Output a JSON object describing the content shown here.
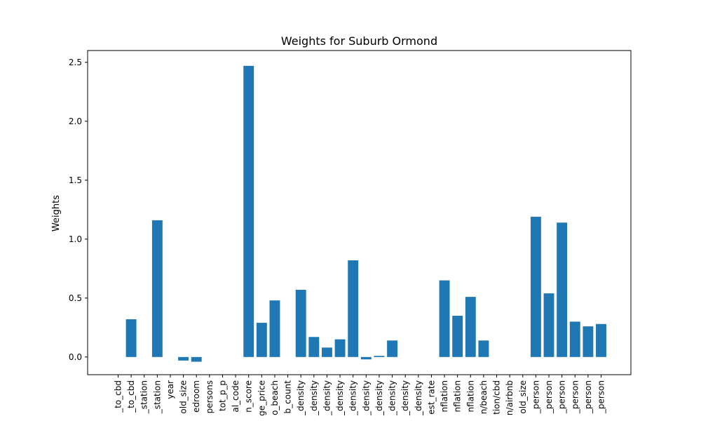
{
  "chart_data": {
    "type": "bar",
    "title": "Weights for Suburb Ormond",
    "xlabel": "",
    "ylabel": "Weights",
    "ylim": [
      -0.15,
      2.6
    ],
    "yticks": [
      0.0,
      0.5,
      1.0,
      1.5,
      2.0,
      2.5
    ],
    "ytick_labels": [
      "0.0",
      "0.5",
      "1.0",
      "1.5",
      "2.0",
      "2.5"
    ],
    "grid": false,
    "bar_color": "#1f77b4",
    "categories": [
      "_to_cbd",
      "_to_cbd",
      "_station",
      "_station",
      "year",
      "old_size",
      "edroom",
      "persons",
      "tot_p_p",
      "al_code",
      "n_score",
      "ge_price",
      "o_beach",
      "b_count",
      "_density",
      "_density",
      "_density",
      "_density",
      "_density",
      "_density",
      "_density",
      "_density",
      "_density",
      "_density",
      "est_rate",
      "nflation",
      "nflation",
      "nflation",
      "n/beach",
      "tion/cbd",
      "n/airbnb",
      "old_size",
      "_person",
      "_person",
      "_person",
      "_person",
      "_person",
      "_person"
    ],
    "values": [
      0.0,
      0.32,
      0.0,
      1.16,
      0.0,
      -0.03,
      -0.04,
      0.0,
      0.0,
      0.0,
      2.47,
      0.29,
      0.48,
      0.0,
      0.57,
      0.17,
      0.08,
      0.15,
      0.82,
      -0.02,
      0.01,
      0.14,
      0.0,
      0.0,
      0.0,
      0.65,
      0.35,
      0.51,
      0.14,
      0.0,
      0.0,
      0.0,
      1.19,
      0.54,
      1.14,
      0.3,
      0.26,
      0.28
    ]
  }
}
